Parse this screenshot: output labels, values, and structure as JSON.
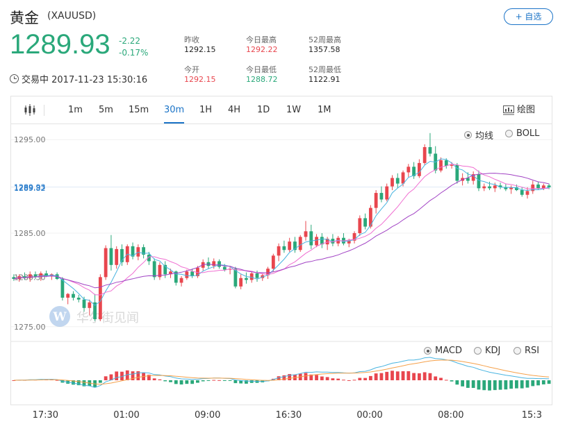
{
  "header": {
    "name": "黄金",
    "symbol": "(XAUUSD)",
    "add_label": "+ 自选",
    "price": "1289.93",
    "change": "-2.22",
    "change_pct": "-0.17%",
    "status": "交易中 2017-11-23 15:30:16"
  },
  "stats": [
    {
      "label": "昨收",
      "value": "1292.15",
      "color": "#222222"
    },
    {
      "label": "今日最高",
      "value": "1292.22",
      "color": "#e8464e"
    },
    {
      "label": "52周最高",
      "value": "1357.58",
      "color": "#222222"
    },
    {
      "label": "今开",
      "value": "1292.15",
      "color": "#e8464e"
    },
    {
      "label": "今日最低",
      "value": "1288.72",
      "color": "#2aa87a"
    },
    {
      "label": "52周最低",
      "value": "1122.91",
      "color": "#222222"
    }
  ],
  "toolbar": {
    "intervals": [
      "1m",
      "5m",
      "15m",
      "30m",
      "1H",
      "4H",
      "1D",
      "1W",
      "1M"
    ],
    "active": "30m",
    "draw_label": "绘图"
  },
  "main_legend": {
    "ma_label": "均线",
    "boll_label": "BOLL",
    "selected": "均线"
  },
  "sub_legend": {
    "macd_label": "MACD",
    "kdj_label": "KDJ",
    "rsi_label": "RSI",
    "selected": "MACD"
  },
  "watermark": "华尔街见闻",
  "colors": {
    "up": "#e8464e",
    "down": "#2aa87a",
    "accent": "#1a73c7",
    "ma_fast": "#49b4e0",
    "ma_mid": "#f06ed1",
    "ma_slow": "#a142c4",
    "dea": "#f5a14a"
  },
  "chart_data": {
    "type": "candlestick",
    "ylim": [
      1273.5,
      1296.5
    ],
    "yticks": [
      "1295.00",
      "1285.00",
      "1275.00"
    ],
    "ytick_values": [
      1295,
      1285,
      1275
    ],
    "price_labels": [
      "1289.93",
      "1289.82",
      "1280.30"
    ],
    "price_values": [
      1289.93,
      1289.82,
      1280.3
    ],
    "xticks": [
      "17:30",
      "01:00",
      "09:00",
      "16:30",
      "00:00",
      "08:00",
      "15:3"
    ],
    "xtick_index": [
      6,
      21,
      36,
      51,
      66,
      81,
      96
    ],
    "ohlc": [
      [
        1280.3,
        1280.6,
        1279.9,
        1280.1
      ],
      [
        1280.1,
        1280.6,
        1279.8,
        1280.4
      ],
      [
        1280.4,
        1280.8,
        1280.0,
        1280.2
      ],
      [
        1280.2,
        1280.9,
        1279.8,
        1280.6
      ],
      [
        1280.6,
        1280.9,
        1280.1,
        1280.3
      ],
      [
        1280.3,
        1280.9,
        1279.9,
        1280.7
      ],
      [
        1280.7,
        1281.0,
        1280.3,
        1280.4
      ],
      [
        1280.4,
        1280.7,
        1280.0,
        1280.6
      ],
      [
        1280.6,
        1280.8,
        1280.0,
        1280.1
      ],
      [
        1280.1,
        1280.3,
        1277.8,
        1278.1
      ],
      [
        1278.1,
        1278.6,
        1277.4,
        1278.5
      ],
      [
        1278.5,
        1278.8,
        1277.8,
        1278.1
      ],
      [
        1278.1,
        1278.4,
        1277.6,
        1277.9
      ],
      [
        1277.9,
        1278.2,
        1276.6,
        1277.0
      ],
      [
        1277.0,
        1277.9,
        1276.2,
        1277.6
      ],
      [
        1277.6,
        1278.5,
        1275.6,
        1275.8
      ],
      [
        1275.8,
        1280.6,
        1275.6,
        1280.3
      ],
      [
        1280.3,
        1283.7,
        1280.0,
        1283.4
      ],
      [
        1283.4,
        1284.8,
        1281.0,
        1281.6
      ],
      [
        1281.6,
        1283.6,
        1281.2,
        1283.3
      ],
      [
        1283.3,
        1283.8,
        1281.5,
        1281.9
      ],
      [
        1281.9,
        1283.8,
        1281.6,
        1283.6
      ],
      [
        1283.6,
        1284.0,
        1282.2,
        1282.5
      ],
      [
        1282.5,
        1283.8,
        1282.1,
        1283.5
      ],
      [
        1283.5,
        1283.8,
        1282.3,
        1282.7
      ],
      [
        1282.7,
        1283.0,
        1281.6,
        1282.0
      ],
      [
        1282.0,
        1282.3,
        1280.0,
        1280.3
      ],
      [
        1280.3,
        1281.9,
        1280.0,
        1281.6
      ],
      [
        1281.6,
        1282.0,
        1280.2,
        1280.6
      ],
      [
        1280.6,
        1281.2,
        1280.2,
        1280.9
      ],
      [
        1280.9,
        1281.0,
        1279.4,
        1279.7
      ],
      [
        1279.7,
        1280.4,
        1279.3,
        1280.2
      ],
      [
        1280.2,
        1281.1,
        1280.0,
        1280.9
      ],
      [
        1280.9,
        1281.2,
        1280.2,
        1280.4
      ],
      [
        1280.4,
        1281.5,
        1280.2,
        1281.3
      ],
      [
        1281.3,
        1282.2,
        1281.0,
        1281.9
      ],
      [
        1281.9,
        1282.4,
        1281.2,
        1281.5
      ],
      [
        1281.5,
        1282.3,
        1281.2,
        1282.0
      ],
      [
        1282.0,
        1282.2,
        1281.2,
        1281.4
      ],
      [
        1281.4,
        1281.7,
        1280.9,
        1281.1
      ],
      [
        1281.1,
        1281.4,
        1280.6,
        1281.2
      ],
      [
        1281.2,
        1281.4,
        1279.1,
        1279.3
      ],
      [
        1279.3,
        1280.6,
        1279.0,
        1280.2
      ],
      [
        1280.2,
        1280.8,
        1279.6,
        1280.0
      ],
      [
        1280.0,
        1280.9,
        1279.7,
        1280.7
      ],
      [
        1280.7,
        1281.0,
        1279.8,
        1280.2
      ],
      [
        1280.2,
        1280.7,
        1279.9,
        1280.5
      ],
      [
        1280.5,
        1281.4,
        1280.1,
        1281.2
      ],
      [
        1281.2,
        1282.8,
        1280.9,
        1282.6
      ],
      [
        1282.6,
        1283.9,
        1282.0,
        1283.6
      ],
      [
        1283.6,
        1284.2,
        1282.9,
        1283.2
      ],
      [
        1283.2,
        1284.5,
        1283.0,
        1284.1
      ],
      [
        1284.1,
        1284.6,
        1282.9,
        1283.2
      ],
      [
        1283.2,
        1284.8,
        1283.0,
        1284.6
      ],
      [
        1284.6,
        1286.3,
        1284.2,
        1285.2
      ],
      [
        1285.2,
        1285.9,
        1283.3,
        1283.7
      ],
      [
        1283.7,
        1284.9,
        1283.5,
        1284.6
      ],
      [
        1284.6,
        1285.0,
        1283.4,
        1283.8
      ],
      [
        1283.8,
        1284.6,
        1283.2,
        1284.4
      ],
      [
        1284.4,
        1284.9,
        1283.6,
        1283.9
      ],
      [
        1283.9,
        1284.7,
        1283.6,
        1284.5
      ],
      [
        1284.5,
        1285.0,
        1283.7,
        1283.9
      ],
      [
        1283.9,
        1284.4,
        1283.5,
        1284.2
      ],
      [
        1284.2,
        1285.2,
        1283.9,
        1285.0
      ],
      [
        1285.0,
        1286.9,
        1284.7,
        1286.6
      ],
      [
        1286.6,
        1287.1,
        1285.4,
        1285.7
      ],
      [
        1285.7,
        1288.0,
        1285.5,
        1287.7
      ],
      [
        1287.7,
        1289.6,
        1287.1,
        1289.3
      ],
      [
        1289.3,
        1290.0,
        1288.3,
        1288.6
      ],
      [
        1288.6,
        1290.3,
        1288.4,
        1290.0
      ],
      [
        1290.0,
        1291.2,
        1289.6,
        1290.9
      ],
      [
        1290.9,
        1291.4,
        1289.8,
        1290.3
      ],
      [
        1290.3,
        1291.7,
        1290.0,
        1291.5
      ],
      [
        1291.5,
        1292.4,
        1291.0,
        1292.1
      ],
      [
        1292.1,
        1292.6,
        1290.8,
        1291.1
      ],
      [
        1291.1,
        1292.9,
        1290.9,
        1292.5
      ],
      [
        1292.5,
        1294.5,
        1292.3,
        1294.2
      ],
      [
        1294.2,
        1295.7,
        1293.2,
        1293.5
      ],
      [
        1293.5,
        1294.3,
        1291.4,
        1291.7
      ],
      [
        1291.7,
        1293.1,
        1291.5,
        1292.8
      ],
      [
        1292.8,
        1293.0,
        1291.9,
        1292.2
      ],
      [
        1292.2,
        1292.6,
        1291.9,
        1292.3
      ],
      [
        1292.3,
        1292.5,
        1290.3,
        1290.6
      ],
      [
        1290.6,
        1291.4,
        1290.1,
        1290.9
      ],
      [
        1290.9,
        1291.5,
        1290.3,
        1290.6
      ],
      [
        1290.6,
        1291.6,
        1290.2,
        1291.3
      ],
      [
        1291.3,
        1291.7,
        1289.5,
        1289.8
      ],
      [
        1289.8,
        1290.3,
        1289.5,
        1290.0
      ],
      [
        1290.0,
        1290.5,
        1289.6,
        1289.8
      ],
      [
        1289.8,
        1290.4,
        1289.4,
        1290.1
      ],
      [
        1290.1,
        1290.4,
        1289.7,
        1289.9
      ],
      [
        1289.9,
        1290.3,
        1289.5,
        1289.7
      ],
      [
        1289.7,
        1290.1,
        1289.2,
        1289.9
      ],
      [
        1289.9,
        1290.2,
        1289.5,
        1289.6
      ],
      [
        1289.6,
        1289.9,
        1288.9,
        1289.1
      ],
      [
        1289.1,
        1289.9,
        1288.7,
        1289.5
      ],
      [
        1289.5,
        1290.6,
        1289.2,
        1290.2
      ],
      [
        1290.2,
        1290.5,
        1289.6,
        1289.8
      ],
      [
        1289.8,
        1290.3,
        1289.6,
        1290.1
      ],
      [
        1290.1,
        1290.3,
        1289.7,
        1289.9
      ]
    ]
  }
}
